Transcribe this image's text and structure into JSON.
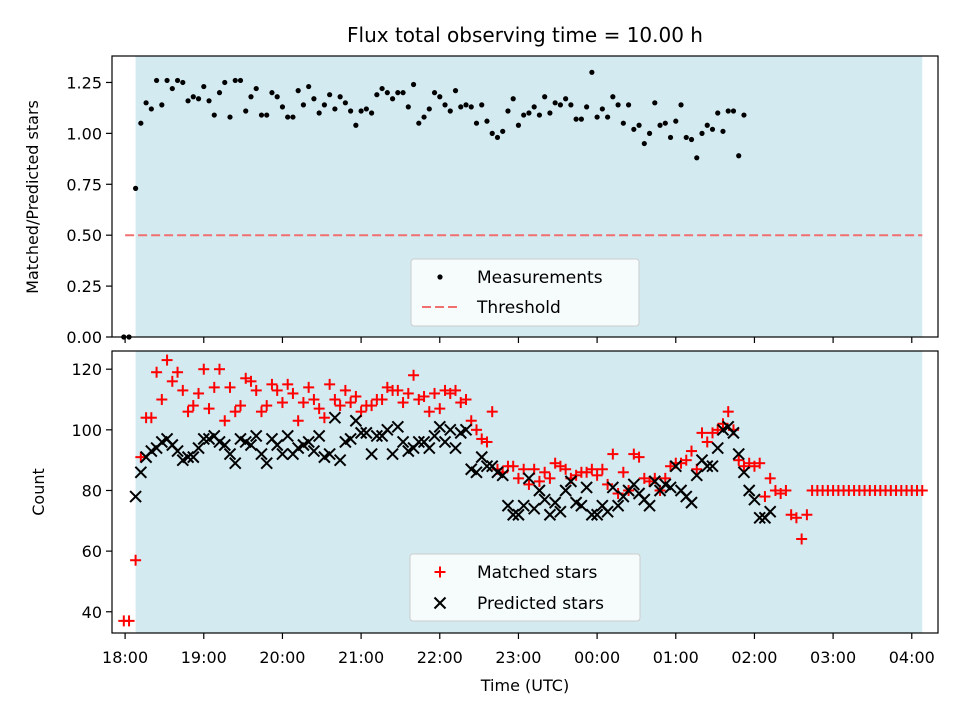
{
  "chart_data": [
    {
      "type": "scatter",
      "title": "Flux total observing time = 10.00 h",
      "ylabel": "Matched/Predicted stars",
      "xlabel": "",
      "xlim": [
        "17:50",
        "04:20"
      ],
      "ylim": [
        0,
        1.38
      ],
      "yticks": [
        "0.00",
        "0.25",
        "0.50",
        "0.75",
        "1.00",
        "1.25"
      ],
      "grid": false,
      "legend": {
        "position": "lower-center",
        "entries": [
          "Measurements",
          "Threshold"
        ]
      },
      "shaded_span": [
        "18:08",
        "04:08"
      ],
      "threshold": {
        "value": 0.5,
        "from": "18:00",
        "to": "04:08",
        "color": "#f07070"
      },
      "colors": {
        "measurements": "#000000",
        "span": "#d3eaf1"
      },
      "series": [
        {
          "name": "Measurements",
          "points": [
            [
              "17:59",
              0.0
            ],
            [
              "18:03",
              0.0
            ],
            [
              "18:08",
              0.73
            ],
            [
              "18:12",
              1.05
            ],
            [
              "18:16",
              1.15
            ],
            [
              "18:20",
              1.12
            ],
            [
              "18:24",
              1.26
            ],
            [
              "18:28",
              1.14
            ],
            [
              "18:32",
              1.26
            ],
            [
              "18:36",
              1.22
            ],
            [
              "18:40",
              1.26
            ],
            [
              "18:44",
              1.25
            ],
            [
              "18:48",
              1.16
            ],
            [
              "18:52",
              1.18
            ],
            [
              "18:56",
              1.17
            ],
            [
              "19:00",
              1.23
            ],
            [
              "19:04",
              1.16
            ],
            [
              "19:08",
              1.09
            ],
            [
              "19:12",
              1.2
            ],
            [
              "19:16",
              1.25
            ],
            [
              "19:20",
              1.08
            ],
            [
              "19:24",
              1.26
            ],
            [
              "19:28",
              1.26
            ],
            [
              "19:32",
              1.11
            ],
            [
              "19:36",
              1.18
            ],
            [
              "19:40",
              1.22
            ],
            [
              "19:44",
              1.09
            ],
            [
              "19:48",
              1.09
            ],
            [
              "19:52",
              1.2
            ],
            [
              "19:56",
              1.18
            ],
            [
              "20:00",
              1.13
            ],
            [
              "20:04",
              1.08
            ],
            [
              "20:08",
              1.08
            ],
            [
              "20:12",
              1.21
            ],
            [
              "20:16",
              1.14
            ],
            [
              "20:20",
              1.23
            ],
            [
              "20:24",
              1.17
            ],
            [
              "20:28",
              1.1
            ],
            [
              "20:32",
              1.14
            ],
            [
              "20:36",
              1.19
            ],
            [
              "20:40",
              1.12
            ],
            [
              "20:44",
              1.18
            ],
            [
              "20:48",
              1.15
            ],
            [
              "20:52",
              1.11
            ],
            [
              "20:56",
              1.04
            ],
            [
              "21:00",
              1.11
            ],
            [
              "21:04",
              1.12
            ],
            [
              "21:08",
              1.1
            ],
            [
              "21:12",
              1.19
            ],
            [
              "21:16",
              1.22
            ],
            [
              "21:20",
              1.2
            ],
            [
              "21:24",
              1.17
            ],
            [
              "21:28",
              1.2
            ],
            [
              "21:32",
              1.2
            ],
            [
              "21:36",
              1.13
            ],
            [
              "21:40",
              1.24
            ],
            [
              "21:44",
              1.05
            ],
            [
              "21:48",
              1.08
            ],
            [
              "21:52",
              1.12
            ],
            [
              "21:56",
              1.2
            ],
            [
              "22:00",
              1.18
            ],
            [
              "22:04",
              1.14
            ],
            [
              "22:08",
              1.11
            ],
            [
              "22:12",
              1.21
            ],
            [
              "22:16",
              1.13
            ],
            [
              "22:20",
              1.14
            ],
            [
              "22:24",
              1.13
            ],
            [
              "22:28",
              1.05
            ],
            [
              "22:32",
              1.14
            ],
            [
              "22:36",
              1.06
            ],
            [
              "22:40",
              1.0
            ],
            [
              "22:44",
              0.98
            ],
            [
              "22:48",
              1.01
            ],
            [
              "22:52",
              1.11
            ],
            [
              "22:56",
              1.17
            ],
            [
              "23:00",
              1.04
            ],
            [
              "23:04",
              1.09
            ],
            [
              "23:08",
              1.1
            ],
            [
              "23:12",
              1.13
            ],
            [
              "23:16",
              1.09
            ],
            [
              "23:20",
              1.18
            ],
            [
              "23:24",
              1.1
            ],
            [
              "23:28",
              1.15
            ],
            [
              "23:32",
              1.14
            ],
            [
              "23:36",
              1.17
            ],
            [
              "23:40",
              1.14
            ],
            [
              "23:44",
              1.07
            ],
            [
              "23:48",
              1.07
            ],
            [
              "23:52",
              1.13
            ],
            [
              "23:56",
              1.3
            ],
            [
              "00:00",
              1.08
            ],
            [
              "00:04",
              1.12
            ],
            [
              "00:08",
              1.08
            ],
            [
              "00:12",
              1.18
            ],
            [
              "00:16",
              1.14
            ],
            [
              "00:20",
              1.05
            ],
            [
              "00:24",
              1.14
            ],
            [
              "00:28",
              1.02
            ],
            [
              "00:32",
              1.04
            ],
            [
              "00:36",
              0.95
            ],
            [
              "00:40",
              1.0
            ],
            [
              "00:44",
              1.15
            ],
            [
              "00:48",
              1.04
            ],
            [
              "00:52",
              1.05
            ],
            [
              "00:56",
              0.98
            ],
            [
              "01:00",
              1.06
            ],
            [
              "01:04",
              1.14
            ],
            [
              "01:08",
              0.98
            ],
            [
              "01:12",
              0.97
            ],
            [
              "01:16",
              0.88
            ],
            [
              "01:20",
              1.0
            ],
            [
              "01:24",
              1.04
            ],
            [
              "01:28",
              1.02
            ],
            [
              "01:32",
              1.1
            ],
            [
              "01:36",
              1.01
            ],
            [
              "01:40",
              1.11
            ],
            [
              "01:44",
              1.11
            ],
            [
              "01:48",
              0.89
            ],
            [
              "01:52",
              1.09
            ]
          ]
        }
      ]
    },
    {
      "type": "scatter",
      "title": "",
      "ylabel": "Count",
      "xlabel": "Time (UTC)",
      "xlim": [
        "17:50",
        "04:20"
      ],
      "ylim": [
        33,
        126
      ],
      "yticks": [
        "40",
        "60",
        "80",
        "100",
        "120"
      ],
      "xticks": [
        "18:00",
        "19:00",
        "20:00",
        "21:00",
        "22:00",
        "23:00",
        "00:00",
        "01:00",
        "02:00",
        "03:00",
        "04:00"
      ],
      "grid": false,
      "legend": {
        "position": "lower-center",
        "entries": [
          "Matched stars",
          "Predicted stars"
        ]
      },
      "shaded_span": [
        "18:08",
        "04:08"
      ],
      "colors": {
        "matched": "#ff0000",
        "predicted": "#000000",
        "span": "#d3eaf1"
      },
      "x": [
        "17:59",
        "18:03",
        "18:08",
        "18:12",
        "18:16",
        "18:20",
        "18:24",
        "18:28",
        "18:32",
        "18:36",
        "18:40",
        "18:44",
        "18:48",
        "18:52",
        "18:56",
        "19:00",
        "19:04",
        "19:08",
        "19:12",
        "19:16",
        "19:20",
        "19:24",
        "19:28",
        "19:32",
        "19:36",
        "19:40",
        "19:44",
        "19:48",
        "19:52",
        "19:56",
        "20:00",
        "20:04",
        "20:08",
        "20:12",
        "20:16",
        "20:20",
        "20:24",
        "20:28",
        "20:32",
        "20:36",
        "20:40",
        "20:44",
        "20:48",
        "20:52",
        "20:56",
        "21:00",
        "21:04",
        "21:08",
        "21:12",
        "21:16",
        "21:20",
        "21:24",
        "21:28",
        "21:32",
        "21:36",
        "21:40",
        "21:44",
        "21:48",
        "21:52",
        "21:56",
        "22:00",
        "22:04",
        "22:08",
        "22:12",
        "22:16",
        "22:20",
        "22:24",
        "22:28",
        "22:32",
        "22:36",
        "22:40",
        "22:44",
        "22:48",
        "22:52",
        "22:56",
        "23:00",
        "23:04",
        "23:08",
        "23:12",
        "23:16",
        "23:20",
        "23:24",
        "23:28",
        "23:32",
        "23:36",
        "23:40",
        "23:44",
        "23:48",
        "23:52",
        "23:56",
        "00:00",
        "00:04",
        "00:08",
        "00:12",
        "00:16",
        "00:20",
        "00:24",
        "00:28",
        "00:32",
        "00:36",
        "00:40",
        "00:44",
        "00:48",
        "00:52",
        "00:56",
        "01:00",
        "01:04",
        "01:08",
        "01:12",
        "01:16",
        "01:20",
        "01:24",
        "01:28",
        "01:32",
        "01:36",
        "01:40",
        "01:44",
        "01:48",
        "01:52",
        "01:56",
        "02:00",
        "02:04",
        "02:08",
        "02:12",
        "02:16",
        "02:20",
        "02:24",
        "02:28",
        "02:32",
        "02:36",
        "02:40",
        "02:44",
        "02:48",
        "02:52",
        "02:56",
        "03:00",
        "03:04",
        "03:08",
        "03:12",
        "03:16",
        "03:20",
        "03:24",
        "03:28",
        "03:32",
        "03:36",
        "03:40",
        "03:44",
        "03:48",
        "03:52",
        "03:56",
        "04:00",
        "04:04",
        "04:08"
      ],
      "series": [
        {
          "name": "Matched stars",
          "values": [
            37,
            37,
            57,
            91,
            104,
            104,
            119,
            110,
            123,
            116,
            119,
            113,
            106,
            108,
            112,
            120,
            107,
            114,
            120,
            103,
            114,
            106,
            108,
            117,
            116,
            113,
            106,
            108,
            115,
            113,
            109,
            115,
            112,
            103,
            109,
            114,
            110,
            107,
            104,
            115,
            110,
            108,
            113,
            109,
            111,
            106,
            108,
            108,
            110,
            110,
            114,
            113,
            113,
            109,
            112,
            118,
            110,
            111,
            106,
            112,
            107,
            113,
            112,
            113,
            109,
            110,
            103,
            100,
            97,
            96,
            106,
            87,
            86,
            88,
            88,
            84,
            87,
            82,
            87,
            83,
            86,
            84,
            89,
            88,
            87,
            84,
            85,
            86,
            86,
            87,
            85,
            87,
            82,
            92,
            79,
            86,
            80,
            92,
            91,
            84,
            83,
            84,
            80,
            84,
            88,
            89,
            89,
            90,
            93,
            87,
            99,
            96,
            99,
            100,
            102,
            106,
            100,
            90,
            88,
            89,
            88,
            89,
            78,
            84,
            80,
            79,
            80,
            72,
            71,
            64,
            72,
            80,
            80,
            80,
            80,
            80,
            80,
            80,
            80,
            80,
            80,
            80,
            80,
            80,
            80,
            80,
            80,
            80,
            80,
            80,
            80,
            80,
            80
          ]
        },
        {
          "name": "Predicted stars",
          "values": [
            null,
            null,
            78,
            86,
            91,
            93,
            94,
            96,
            97,
            95,
            93,
            90,
            91,
            91,
            94,
            97,
            97,
            98,
            96,
            95,
            92,
            89,
            97,
            96,
            95,
            98,
            92,
            89,
            97,
            95,
            92,
            98,
            92,
            94,
            95,
            96,
            93,
            98,
            91,
            92,
            104,
            90,
            96,
            97,
            103,
            99,
            99,
            92,
            98,
            98,
            100,
            92,
            101,
            96,
            93,
            94,
            96,
            96,
            94,
            98,
            101,
            96,
            100,
            94,
            99,
            100,
            87,
            86,
            91,
            88,
            88,
            86,
            85,
            75,
            72,
            72,
            75,
            84,
            74,
            80,
            77,
            72,
            76,
            73,
            80,
            83,
            76,
            75,
            81,
            72,
            72,
            75,
            73,
            81,
            75,
            78,
            80,
            82,
            79,
            77,
            75,
            83,
            80,
            82,
            81,
            88,
            80,
            78,
            76,
            85,
            90,
            88,
            88,
            94,
            100,
            101,
            99,
            92,
            86,
            80,
            77,
            71,
            71,
            73,
            null,
            null,
            null,
            null,
            null,
            null,
            null,
            null,
            null,
            null,
            null,
            null,
            null,
            null,
            null,
            null,
            null,
            null,
            null,
            null,
            null,
            null,
            null,
            null,
            null,
            null,
            null,
            null,
            null
          ]
        }
      ]
    }
  ]
}
